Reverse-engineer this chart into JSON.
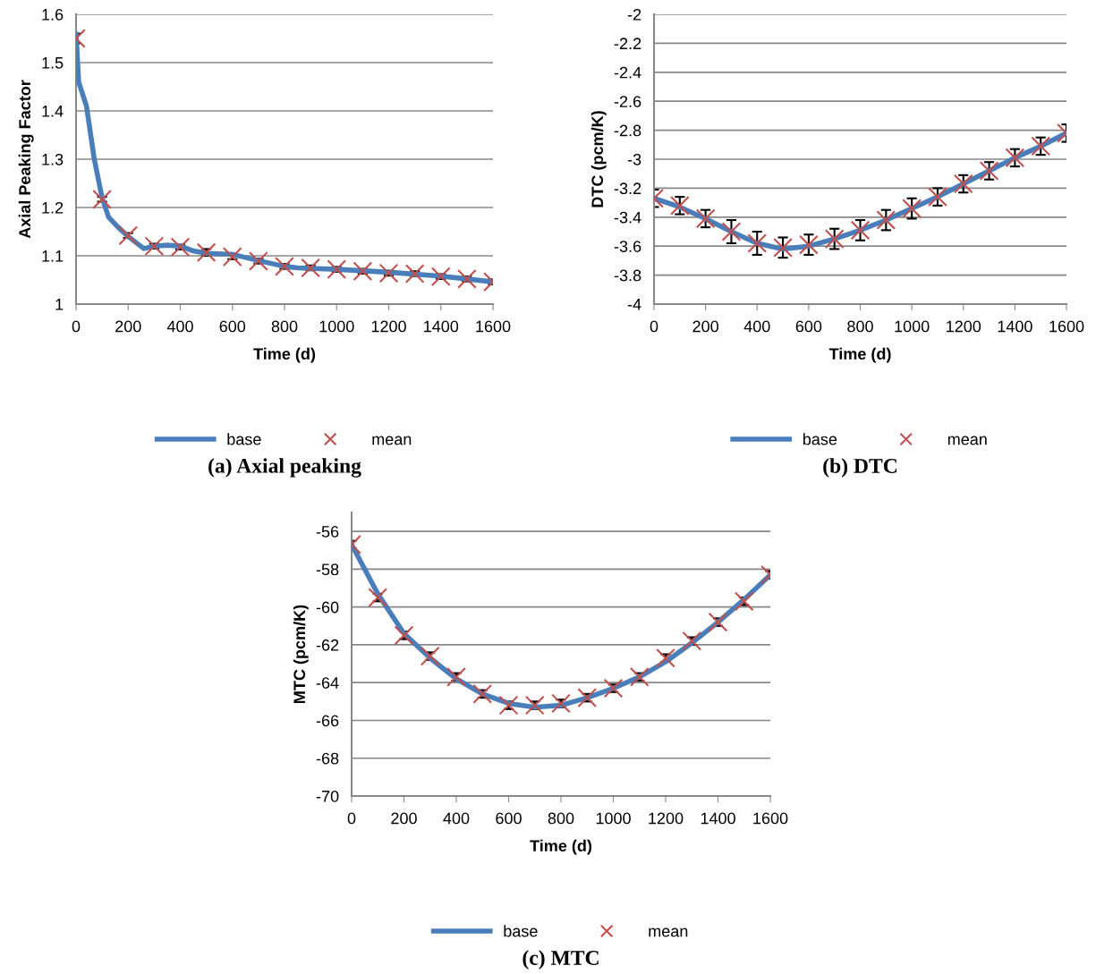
{
  "chart_data": [
    {
      "type": "line",
      "title": "(a) Axial peaking",
      "xlabel": "Time (d)",
      "ylabel": "Axial Peaking Factor",
      "xlim": [
        0,
        1600
      ],
      "xticks": [
        0,
        200,
        400,
        600,
        800,
        1000,
        1200,
        1400,
        1600
      ],
      "ylim": [
        1,
        1.6
      ],
      "yticks": [
        {
          "value": 1,
          "label": "1"
        },
        1.1,
        1.2,
        1.3,
        1.4,
        1.5,
        1.6
      ],
      "grid": "y",
      "legend": "bottom",
      "series": [
        {
          "name": "base",
          "color": "#4a7ebb",
          "marker": "none",
          "line_style": "solid",
          "x": [
            0,
            10,
            40,
            70,
            100,
            125,
            160,
            200,
            260,
            300,
            350,
            400,
            450,
            500,
            600,
            700,
            800,
            850,
            1000,
            1200,
            1400,
            1600
          ],
          "values": [
            1.56,
            1.46,
            1.41,
            1.3,
            1.22,
            1.18,
            1.16,
            1.14,
            1.115,
            1.12,
            1.122,
            1.12,
            1.11,
            1.105,
            1.103,
            1.09,
            1.078,
            1.075,
            1.072,
            1.066,
            1.058,
            1.046
          ]
        },
        {
          "name": "mean",
          "type": "scatter",
          "color": "#c0504d",
          "marker": "cross",
          "x": [
            0,
            100,
            200,
            300,
            400,
            500,
            600,
            700,
            800,
            900,
            1000,
            1100,
            1200,
            1300,
            1400,
            1500,
            1600
          ],
          "values": [
            1.55,
            1.217,
            1.142,
            1.12,
            1.118,
            1.107,
            1.098,
            1.089,
            1.078,
            1.075,
            1.072,
            1.068,
            1.064,
            1.063,
            1.057,
            1.052,
            1.046
          ],
          "errors": [
            0.01,
            0.005,
            0.005,
            0.005,
            0.005,
            0.007,
            0.005,
            0.005,
            0.005,
            0.005,
            0.005,
            0.005,
            0.005,
            0.005,
            0.005,
            0.005,
            0.005
          ]
        }
      ]
    },
    {
      "type": "line",
      "title": "(b) DTC",
      "xlabel": "Time (d)",
      "ylabel": "DTC (pcm/K)",
      "xlim": [
        0,
        1600
      ],
      "xticks": [
        0,
        200,
        400,
        600,
        800,
        1000,
        1200,
        1400,
        1600
      ],
      "ylim": [
        -4,
        -2
      ],
      "yticks": [
        -4,
        -3.8,
        -3.6,
        -3.4,
        -3.2,
        {
          "value": -3,
          "label": "-3"
        },
        -2.8,
        -2.6,
        -2.4,
        -2.2,
        {
          "value": -2,
          "label": "-2"
        }
      ],
      "grid": "y",
      "legend": "bottom",
      "series": [
        {
          "name": "base",
          "color": "#4a7ebb",
          "marker": "none",
          "line_style": "solid",
          "x": [
            0,
            100,
            200,
            300,
            400,
            500,
            600,
            700,
            800,
            900,
            1000,
            1100,
            1200,
            1300,
            1400,
            1500,
            1600
          ],
          "values": [
            -3.27,
            -3.33,
            -3.41,
            -3.5,
            -3.58,
            -3.62,
            -3.6,
            -3.55,
            -3.49,
            -3.42,
            -3.34,
            -3.26,
            -3.17,
            -3.08,
            -2.99,
            -2.91,
            -2.82
          ]
        },
        {
          "name": "mean",
          "type": "scatter",
          "color": "#c0504d",
          "marker": "cross",
          "x": [
            0,
            100,
            200,
            300,
            400,
            500,
            600,
            700,
            800,
            900,
            1000,
            1100,
            1200,
            1300,
            1400,
            1500,
            1600
          ],
          "values": [
            -3.27,
            -3.32,
            -3.41,
            -3.5,
            -3.58,
            -3.61,
            -3.59,
            -3.55,
            -3.49,
            -3.42,
            -3.34,
            -3.26,
            -3.17,
            -3.08,
            -2.99,
            -2.91,
            -2.82
          ],
          "errors": [
            0.06,
            0.06,
            0.06,
            0.08,
            0.08,
            0.07,
            0.07,
            0.07,
            0.07,
            0.07,
            0.07,
            0.06,
            0.06,
            0.06,
            0.06,
            0.06,
            0.06
          ]
        }
      ]
    },
    {
      "type": "line",
      "title": "(c) MTC",
      "xlabel": "Time (d)",
      "ylabel": "MTC (pcm/K)",
      "xlim": [
        0,
        1600
      ],
      "xticks": [
        0,
        200,
        400,
        600,
        800,
        1000,
        1200,
        1400,
        1600
      ],
      "ylim": [
        -70,
        -55
      ],
      "yticks": [
        -70,
        -68,
        -66,
        -64,
        -62,
        -60,
        -58,
        -56
      ],
      "grid": "y",
      "legend": "bottom",
      "series": [
        {
          "name": "base",
          "color": "#4a7ebb",
          "marker": "none",
          "line_style": "solid",
          "x": [
            0,
            100,
            200,
            300,
            400,
            500,
            600,
            700,
            800,
            900,
            1000,
            1100,
            1200,
            1300,
            1400,
            1500,
            1600
          ],
          "values": [
            -56.7,
            -59.3,
            -61.4,
            -62.7,
            -63.8,
            -64.6,
            -65.1,
            -65.3,
            -65.2,
            -64.8,
            -64.3,
            -63.7,
            -62.9,
            -61.9,
            -60.8,
            -59.6,
            -58.3
          ]
        },
        {
          "name": "mean",
          "type": "scatter",
          "color": "#c0504d",
          "marker": "cross",
          "x": [
            0,
            100,
            200,
            300,
            400,
            500,
            600,
            700,
            800,
            900,
            1000,
            1100,
            1200,
            1300,
            1400,
            1500,
            1600
          ],
          "values": [
            -56.7,
            -59.5,
            -61.5,
            -62.6,
            -63.7,
            -64.6,
            -65.2,
            -65.2,
            -65.1,
            -64.8,
            -64.3,
            -63.7,
            -62.7,
            -61.8,
            -60.8,
            -59.7,
            -58.3
          ],
          "errors": [
            0.2,
            0.2,
            0.2,
            0.2,
            0.2,
            0.2,
            0.2,
            0.2,
            0.2,
            0.2,
            0.2,
            0.2,
            0.2,
            0.2,
            0.2,
            0.2,
            0.2
          ]
        }
      ]
    }
  ]
}
